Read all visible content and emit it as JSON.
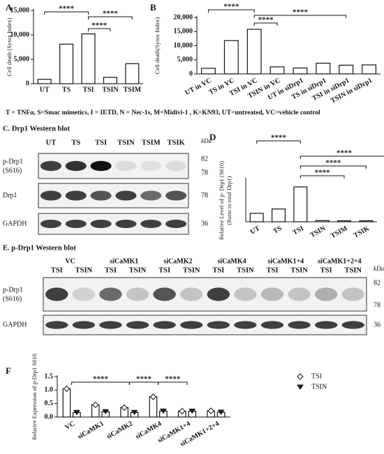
{
  "chart_data": [
    {
      "type": "bar",
      "label": "A",
      "ylabel": "Cell death (Sytox Index)",
      "categories": [
        "UT",
        "TS",
        "TSI",
        "TSIN",
        "TSIM"
      ],
      "values": [
        900,
        8100,
        10200,
        1300,
        4100
      ],
      "ylim": [
        0,
        15000
      ],
      "yticks": [
        0,
        {
          "value": 5000,
          "label": "5,000"
        },
        {
          "value": 10000,
          "label": "10,000"
        },
        {
          "value": 15000,
          "label": "15,000"
        }
      ],
      "significance": [
        "****",
        "****",
        "****"
      ]
    },
    {
      "type": "bar",
      "label": "B",
      "ylabel": "Cell death(Sytox Index)",
      "categories": [
        "UT in VC",
        "TS in VC",
        "TSI in VC",
        "TSIN in VC",
        "UT in siDrp1",
        "TS in siDrp1",
        "TSI in siDrp1",
        "TSIN in siDrp1"
      ],
      "values": [
        2000,
        11800,
        15800,
        2500,
        2100,
        3800,
        3100,
        3200
      ],
      "ylim": [
        0,
        20000
      ],
      "yticks": [
        0,
        {
          "value": 5000,
          "label": "5,000"
        },
        {
          "value": 10000,
          "label": "10,000"
        },
        {
          "value": 15000,
          "label": "15,000"
        },
        {
          "value": 20000,
          "label": "20,000"
        }
      ],
      "significance": [
        "****",
        "****",
        "****"
      ]
    },
    {
      "type": "bar",
      "label": "D",
      "ylabel": "Relative Level of p- Drp1 (S616)",
      "ylabel2": "(Ratio to total Drp1)",
      "categories": [
        "UT",
        "TS",
        "TSI",
        "TSIN",
        "TSIM",
        "TSIK"
      ],
      "values": [
        1.0,
        1.5,
        4.1,
        0.15,
        0.12,
        0.12
      ],
      "ylim": [
        0,
        5
      ],
      "significance": [
        "****",
        "****",
        "****",
        "****"
      ]
    },
    {
      "type": "bar",
      "label": "F",
      "ylabel": "Relative  Expression of p-Drp1 S616",
      "categories": [
        "VC",
        "siCaMK1",
        "siCaMK2",
        "siCaMK4",
        "siCaMK1+4",
        "siCaMK1+2+4"
      ],
      "series": [
        {
          "name": "TSI",
          "color": "#ffffff",
          "values": [
            1.05,
            0.45,
            0.35,
            0.75,
            0.22,
            0.23
          ]
        },
        {
          "name": "TSIN",
          "color": "#222222",
          "values": [
            0.17,
            0.2,
            0.17,
            0.22,
            0.22,
            0.18
          ]
        }
      ],
      "ylim": [
        0,
        1.5
      ],
      "yticks": [
        {
          "value": 0,
          "label": "0.0"
        },
        0.5,
        {
          "value": 1,
          "label": "1.0"
        },
        1.5
      ],
      "significance": [
        "****",
        "****",
        "****"
      ]
    }
  ],
  "caption": "T = TNFα, S=Smac mimetics, I = IETD, N = Nec-1s, M=Midivi-1 , K=KN93, UT=untreated, VC=vehicle control",
  "blots": [
    {
      "title": "C. Drp1 Western blot",
      "lanes": [
        "UT",
        "TS",
        "TSI",
        "TSIN",
        "TSIM",
        "TSIK"
      ],
      "unit": "kDa",
      "rows": [
        {
          "label": "p-Drp1",
          "sublabel": "(S616)",
          "markers": [
            82,
            78
          ]
        },
        {
          "label": "Drp1",
          "markers": [
            78
          ]
        },
        {
          "label": "GAPDH",
          "markers": [
            36
          ]
        }
      ]
    },
    {
      "title": "E. p-Drp1 Western blot",
      "groups": [
        "VC",
        "siCaMK1",
        "siCaMK2",
        "siCaMK4",
        "siCaMK1+4",
        "siCaMK1+2+4"
      ],
      "lanes": [
        "TSI",
        "TSIN",
        "TSI",
        "TSIN",
        "TSI",
        "TSIN",
        "TSI",
        "TSIN",
        "TSI",
        "TSIN",
        "TSI",
        "TSIN"
      ],
      "unit": "kDa",
      "rows": [
        {
          "label": "p-Drp1",
          "sublabel": "(S616)",
          "markers": [
            82,
            78
          ]
        },
        {
          "label": "GAPDH",
          "markers": [
            36
          ]
        }
      ]
    }
  ]
}
